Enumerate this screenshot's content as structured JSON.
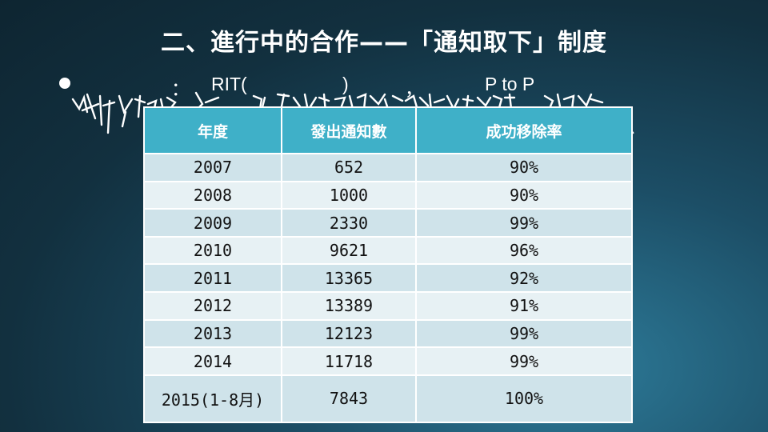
{
  "title": "二、進行中的合作——「通知取下」制度",
  "bullet": {
    "colon": "：",
    "rit": "RIT(",
    "paren_close": ")",
    "comma": "，",
    "p2p": "P to P"
  },
  "table": {
    "headers": [
      "年度",
      "發出通知數",
      "成功移除率"
    ],
    "rows": [
      {
        "year": "2007",
        "notices": "652",
        "rate": "90%"
      },
      {
        "year": "2008",
        "notices": "1000",
        "rate": "90%"
      },
      {
        "year": "2009",
        "notices": "2330",
        "rate": "99%"
      },
      {
        "year": "2010",
        "notices": "9621",
        "rate": "96%"
      },
      {
        "year": "2011",
        "notices": "13365",
        "rate": "92%"
      },
      {
        "year": "2012",
        "notices": "13389",
        "rate": "91%"
      },
      {
        "year": "2013",
        "notices": "12123",
        "rate": "99%"
      },
      {
        "year": "2014",
        "notices": "11718",
        "rate": "99%"
      },
      {
        "year": "2015(1-8月)",
        "notices": "7843",
        "rate": "100%"
      }
    ]
  }
}
